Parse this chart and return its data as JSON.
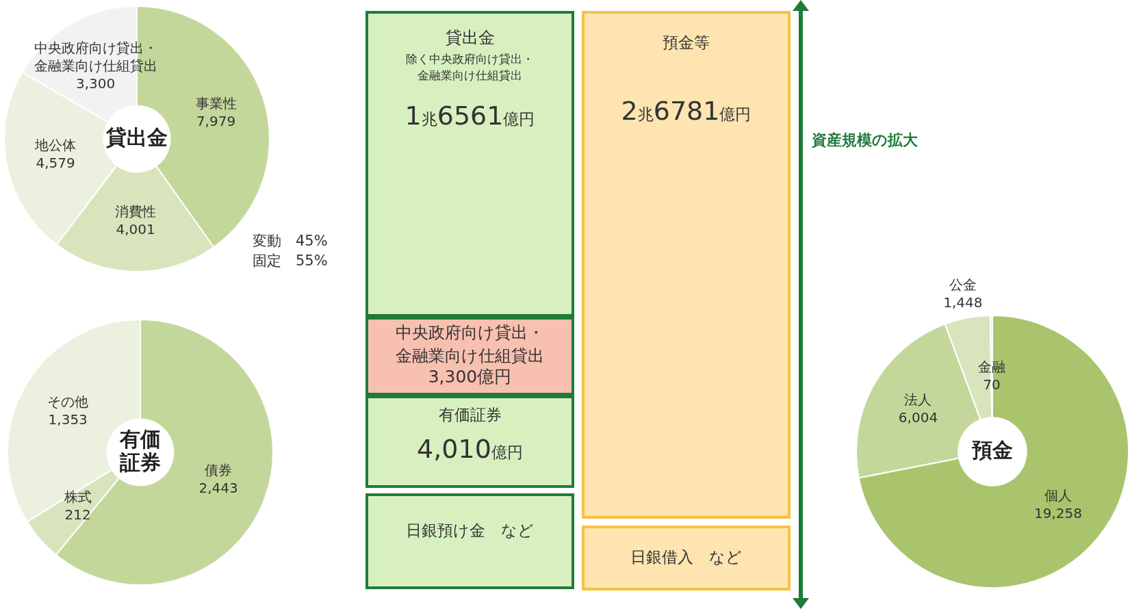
{
  "chart_data": [
    {
      "type": "donut",
      "title": "貸出金",
      "categories": [
        "事業性",
        "消費性",
        "地公体",
        "中央政府向け貸出・金融業向け仕組貸出"
      ],
      "values": [
        7979,
        4001,
        4579,
        3300
      ],
      "value_labels": [
        "7,979",
        "4,001",
        "4,579",
        "3,300"
      ],
      "colors": [
        "#c4d79b",
        "#d8e4bc",
        "#ebf1de",
        "#f2f2f2"
      ],
      "annotations": [
        "変動　45%",
        "固定　55%"
      ]
    },
    {
      "type": "donut",
      "title": "有価証券",
      "categories": [
        "債券",
        "株式",
        "その他"
      ],
      "values": [
        2443,
        212,
        1353
      ],
      "value_labels": [
        "2,443",
        "212",
        "1,353"
      ],
      "colors": [
        "#c4d79b",
        "#d8e4bc",
        "#ebf1de"
      ]
    },
    {
      "type": "other",
      "annotations": [
        "貸出金",
        "除く中央政府向け貸出・金融業向け仕組貸出",
        "1兆6561億円",
        "中央政府向け貸出・金融業向け仕組貸出",
        "3,300億円",
        "有価証券",
        "4,010億円",
        "日銀預け金　など",
        "預金等",
        "2兆6781億円",
        "日銀借入　など",
        "資産規模の拡大"
      ],
      "colors": [
        "#d8f0c0",
        "#f8c0b0",
        "#d8f0c0",
        "#d8f0c0",
        "#fde4b0",
        "#fde4b0",
        "#1e7b3a"
      ]
    },
    {
      "type": "donut",
      "title": "預金",
      "categories": [
        "個人",
        "法人",
        "公金",
        "金融"
      ],
      "values": [
        19258,
        6004,
        1448,
        70
      ],
      "value_labels": [
        "19,258",
        "6,004",
        "1,448",
        "70"
      ],
      "colors": [
        "#a9c46c",
        "#c4d79b",
        "#d8e4bc",
        "#ebf1de"
      ]
    }
  ]
}
